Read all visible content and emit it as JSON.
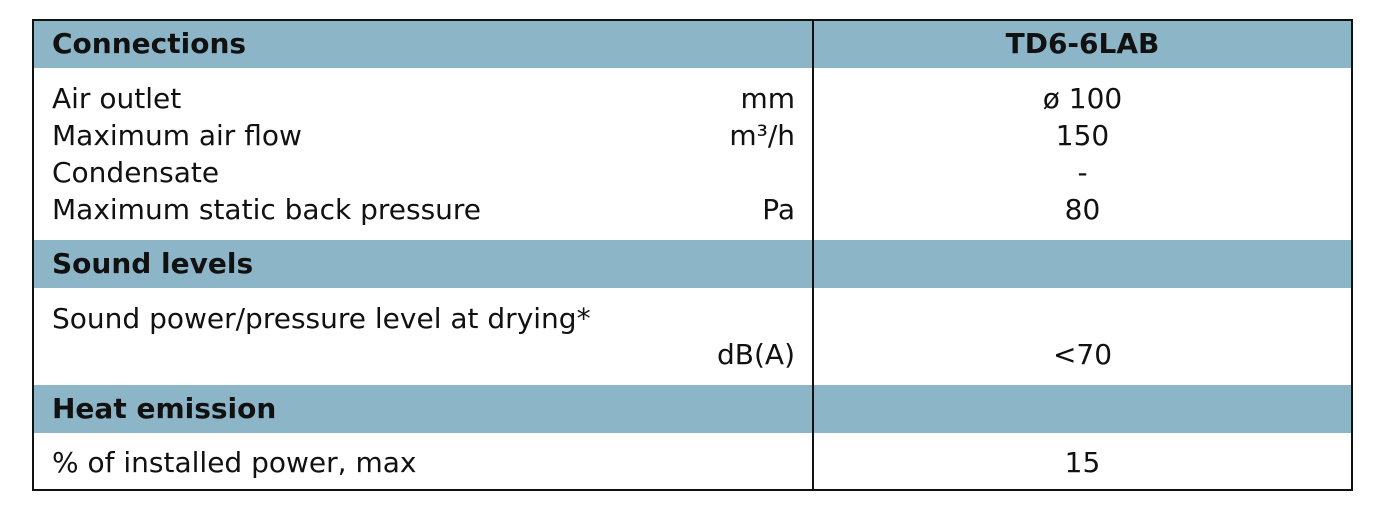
{
  "sections": [
    {
      "title": "Connections",
      "column_header": "TD6-6LAB",
      "rows": [
        {
          "label": "Air outlet",
          "unit": "mm",
          "value": "ø 100"
        },
        {
          "label": "Maximum air flow",
          "unit": "m³/h",
          "value": "150"
        },
        {
          "label": "Condensate",
          "value": "-"
        },
        {
          "label": "Maximum static back pressure",
          "unit": "Pa",
          "value": "80"
        }
      ]
    },
    {
      "title": "Sound levels",
      "rows": [
        {
          "label": "Sound power/pressure level at drying*",
          "unit": "dB(A)",
          "value": "<70"
        }
      ]
    },
    {
      "title": "Heat emission",
      "rows": [
        {
          "label": "% of installed power, max",
          "value": "15"
        }
      ]
    }
  ]
}
